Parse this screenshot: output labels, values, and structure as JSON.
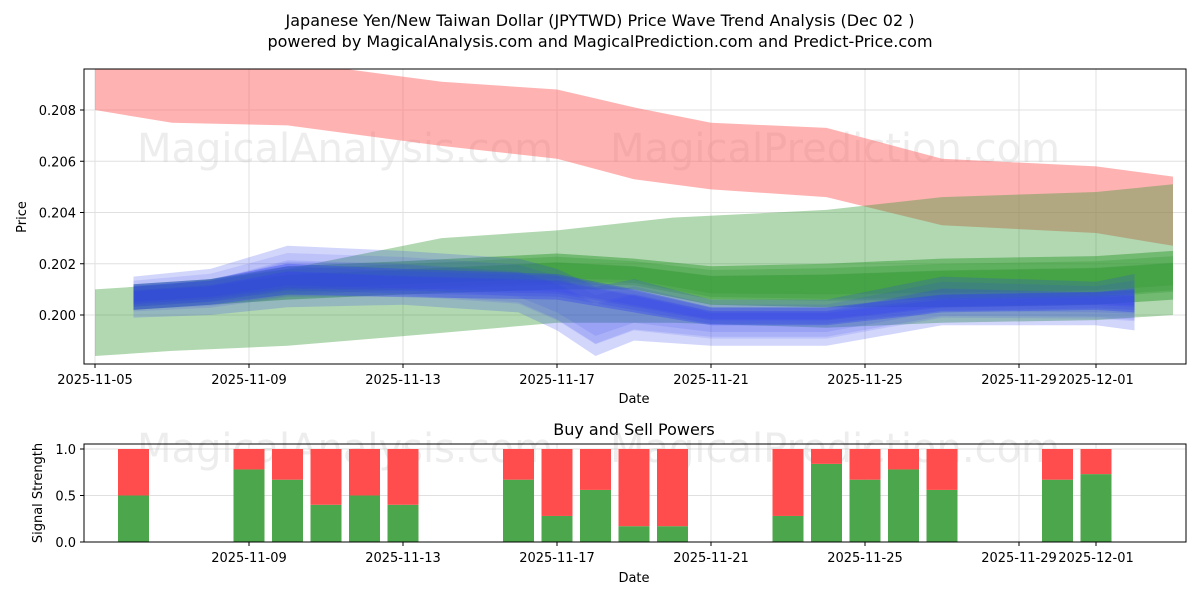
{
  "header": {
    "title_line1": "Japanese Yen/New Taiwan Dollar (JPYTWD) Price Wave Trend Analysis (Dec 02 )",
    "title_line2": "powered by MagicalAnalysis.com and MagicalPrediction.com and Predict-Price.com"
  },
  "watermarks": {
    "top": [
      "MagicalAnalysis.com",
      "MagicalPrediction.com"
    ],
    "bottom": [
      "MagicalAnalysis.com",
      "MagicalPrediction.com"
    ]
  },
  "colors": {
    "red": "#ff6666",
    "green": "#339933",
    "blue": "#3344ee",
    "bar_buy": "#4ca64c",
    "bar_sell": "#ff4d4d"
  },
  "chart_data": [
    {
      "type": "area",
      "title": "",
      "xlabel": "Date",
      "ylabel": "Price",
      "x_range": [
        "2025-11-05",
        "2025-12-03"
      ],
      "ylim": [
        0.1982,
        0.2096
      ],
      "yticks": [
        "0.200",
        "0.202",
        "0.204",
        "0.206",
        "0.208"
      ],
      "xticks": [
        "2025-11-05",
        "2025-11-09",
        "2025-11-13",
        "2025-11-17",
        "2025-11-21",
        "2025-11-25",
        "2025-11-29",
        "2025-12-01"
      ],
      "bands": [
        {
          "name": "red-wave",
          "color": "red",
          "x": [
            "2025-11-05",
            "2025-11-07",
            "2025-11-10",
            "2025-11-14",
            "2025-11-17",
            "2025-11-19",
            "2025-11-21",
            "2025-11-24",
            "2025-11-27",
            "2025-12-01",
            "2025-12-03"
          ],
          "upper": [
            0.2099,
            0.2099,
            0.2099,
            0.2091,
            0.2088,
            0.2081,
            0.2075,
            0.2073,
            0.2061,
            0.2058,
            0.2054
          ],
          "lower": [
            0.208,
            0.2075,
            0.2074,
            0.2066,
            0.2061,
            0.2053,
            0.2049,
            0.2046,
            0.2035,
            0.2032,
            0.2027
          ]
        },
        {
          "name": "green-wave-wide",
          "color": "green",
          "x": [
            "2025-11-05",
            "2025-11-07",
            "2025-11-10",
            "2025-11-14",
            "2025-11-17",
            "2025-11-20",
            "2025-11-24",
            "2025-11-27",
            "2025-12-01",
            "2025-12-03"
          ],
          "upper": [
            0.201,
            0.2012,
            0.2018,
            0.203,
            0.2033,
            0.2038,
            0.2041,
            0.2046,
            0.2048,
            0.2051
          ],
          "lower": [
            0.1984,
            0.1986,
            0.1988,
            0.1993,
            0.1997,
            0.1997,
            0.1995,
            0.1997,
            0.1998,
            0.2
          ]
        },
        {
          "name": "green-wave-main",
          "color": "green",
          "x": [
            "2025-11-06",
            "2025-11-08",
            "2025-11-10",
            "2025-11-13",
            "2025-11-17",
            "2025-11-19",
            "2025-11-21",
            "2025-11-24",
            "2025-11-27",
            "2025-12-01",
            "2025-12-03"
          ],
          "upper": [
            0.2012,
            0.2014,
            0.2019,
            0.2021,
            0.2024,
            0.2022,
            0.2019,
            0.202,
            0.2022,
            0.2023,
            0.2025
          ],
          "lower": [
            0.2002,
            0.2004,
            0.2006,
            0.2008,
            0.201,
            0.201,
            0.2004,
            0.2003,
            0.2003,
            0.2004,
            0.2006
          ]
        },
        {
          "name": "blue-wave-outer",
          "color": "blue",
          "x": [
            "2025-11-06",
            "2025-11-08",
            "2025-11-10",
            "2025-11-13",
            "2025-11-16",
            "2025-11-17",
            "2025-11-18",
            "2025-11-19",
            "2025-11-21",
            "2025-11-24",
            "2025-11-27",
            "2025-12-01",
            "2025-12-02"
          ],
          "upper": [
            0.2015,
            0.2018,
            0.2027,
            0.2025,
            0.2022,
            0.2018,
            0.2011,
            0.2014,
            0.2006,
            0.2006,
            0.2015,
            0.2013,
            0.2016
          ],
          "lower": [
            0.1999,
            0.2,
            0.2003,
            0.2004,
            0.2001,
            0.1994,
            0.1984,
            0.199,
            0.1988,
            0.1988,
            0.1996,
            0.1996,
            0.1994
          ]
        },
        {
          "name": "blue-wave-inner",
          "color": "blue",
          "x": [
            "2025-11-06",
            "2025-11-08",
            "2025-11-10",
            "2025-11-13",
            "2025-11-17",
            "2025-11-19",
            "2025-11-21",
            "2025-11-24",
            "2025-11-27",
            "2025-12-01",
            "2025-12-02"
          ],
          "upper": [
            0.2012,
            0.2014,
            0.202,
            0.2018,
            0.2016,
            0.201,
            0.2003,
            0.2003,
            0.2008,
            0.2009,
            0.201
          ],
          "lower": [
            0.2002,
            0.2004,
            0.2008,
            0.2007,
            0.2006,
            0.2001,
            0.1996,
            0.1996,
            0.2001,
            0.2002,
            0.2001
          ]
        }
      ]
    },
    {
      "type": "bar",
      "title": "Buy and Sell Powers",
      "xlabel": "Date",
      "ylabel": "Signal Strength",
      "x_range": [
        "2025-11-05",
        "2025-12-03"
      ],
      "ylim": [
        0.0,
        1.05
      ],
      "yticks": [
        "0.0",
        "0.5",
        "1.0"
      ],
      "xticks": [
        "2025-11-09",
        "2025-11-13",
        "2025-11-17",
        "2025-11-21",
        "2025-11-25",
        "2025-11-29",
        "2025-12-01"
      ],
      "categories": [
        "2025-11-06",
        "2025-11-09",
        "2025-11-10",
        "2025-11-11",
        "2025-11-12",
        "2025-11-13",
        "2025-11-16",
        "2025-11-17",
        "2025-11-18",
        "2025-11-19",
        "2025-11-20",
        "2025-11-23",
        "2025-11-24",
        "2025-11-25",
        "2025-11-26",
        "2025-11-27",
        "2025-11-30",
        "2025-12-01"
      ],
      "series": [
        {
          "name": "Buy",
          "color": "bar_buy",
          "values": [
            0.5,
            0.78,
            0.67,
            0.4,
            0.5,
            0.4,
            0.67,
            0.28,
            0.56,
            0.17,
            0.17,
            0.28,
            0.84,
            0.67,
            0.78,
            0.56,
            0.67,
            0.73
          ]
        },
        {
          "name": "Sell",
          "color": "bar_sell",
          "values": [
            0.5,
            0.22,
            0.33,
            0.6,
            0.5,
            0.6,
            0.33,
            0.72,
            0.44,
            0.83,
            0.83,
            0.72,
            0.16,
            0.33,
            0.22,
            0.44,
            0.33,
            0.27
          ]
        }
      ]
    }
  ]
}
